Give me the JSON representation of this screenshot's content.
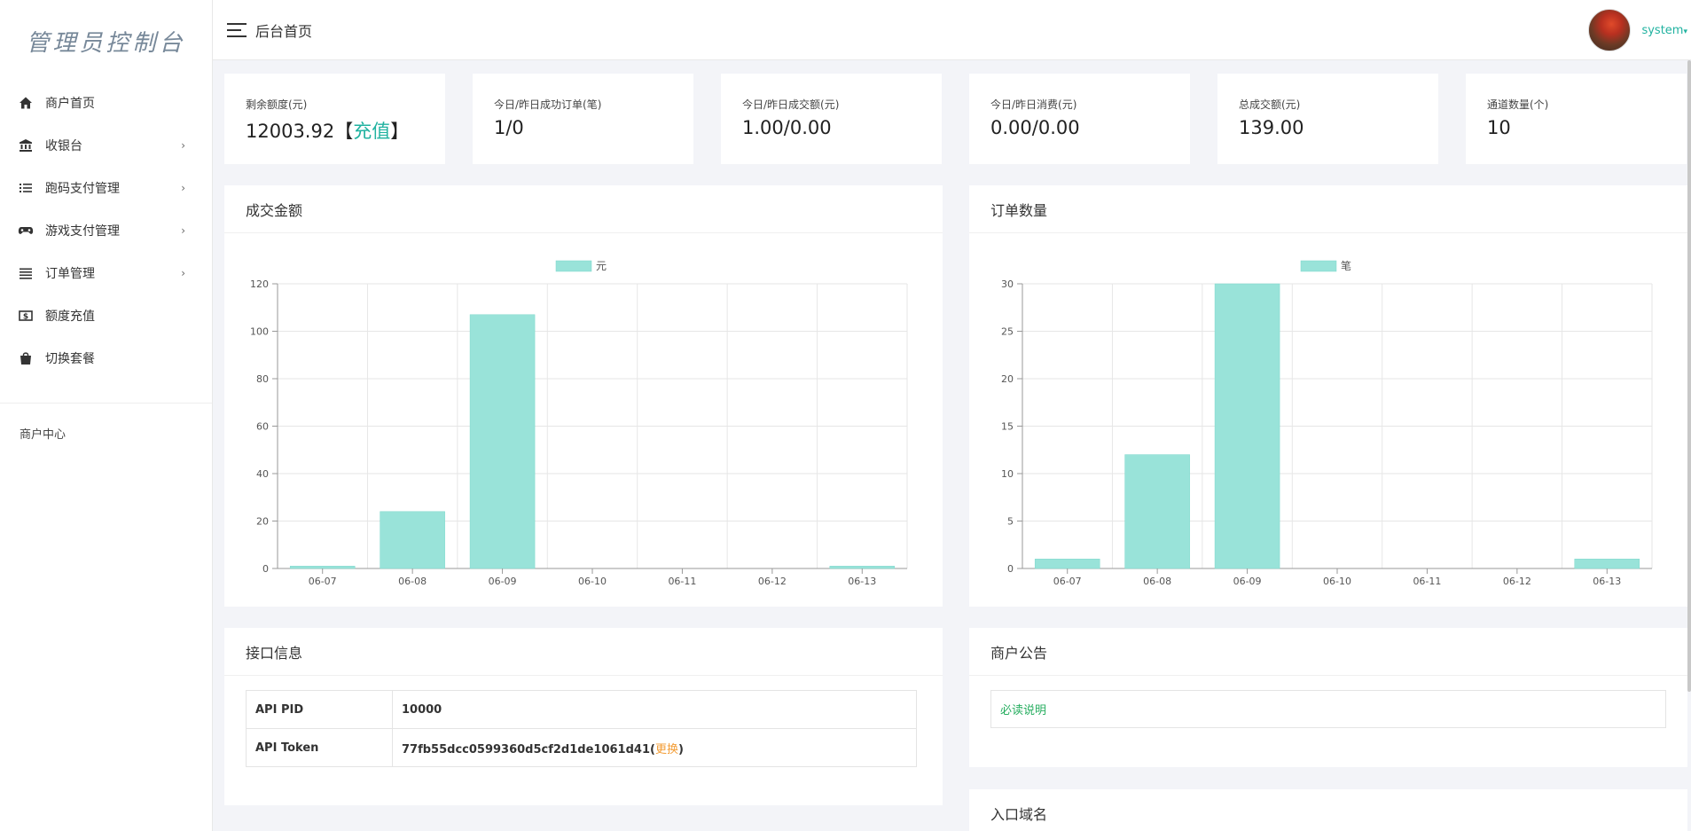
{
  "sidebar": {
    "brand": "管理员控制台",
    "items": [
      {
        "label": "商户首页",
        "icon": "home-icon",
        "has_children": false
      },
      {
        "label": "收银台",
        "icon": "bank-icon",
        "has_children": true
      },
      {
        "label": "跑码支付管理",
        "icon": "list-icon",
        "has_children": true
      },
      {
        "label": "游戏支付管理",
        "icon": "gamepad-icon",
        "has_children": true
      },
      {
        "label": "订单管理",
        "icon": "bars-icon",
        "has_children": true
      },
      {
        "label": "额度充值",
        "icon": "money-icon",
        "has_children": false
      },
      {
        "label": "切换套餐",
        "icon": "bag-icon",
        "has_children": false
      }
    ],
    "section": "商户中心",
    "chevron": "›"
  },
  "header": {
    "title": "后台首页",
    "username": "system",
    "caret": "▾"
  },
  "stats": [
    {
      "label": "剩余额度(元)",
      "value": "12003.92",
      "bracket_open": "【",
      "link": "充值",
      "bracket_close": "】"
    },
    {
      "label": "今日/昨日成功订单(笔)",
      "value": "1/0"
    },
    {
      "label": "今日/昨日成交额(元)",
      "value": "1.00/0.00"
    },
    {
      "label": "今日/昨日消费(元)",
      "value": "0.00/0.00"
    },
    {
      "label": "总成交额(元)",
      "value": "139.00"
    },
    {
      "label": "通道数量(个)",
      "value": "10"
    }
  ],
  "panels": {
    "amount_title": "成交金额",
    "orders_title": "订单数量",
    "api_title": "接口信息",
    "notice_title": "商户公告",
    "domain_title": "入口域名"
  },
  "api": {
    "pid_label": "API PID",
    "pid_value": "10000",
    "token_label": "API Token",
    "token_value": "77fb55dcc0599360d5cf2d1de1061d41",
    "paren_open": "(",
    "change_label": "更换",
    "paren_close": ")"
  },
  "notice": {
    "link": "必读说明"
  },
  "colors": {
    "accent": "#20b2a0",
    "bar": "#99e3d9",
    "bar_stroke": "#7dd8cc",
    "warning": "#f39c34",
    "notice": "#27ae60"
  },
  "chart_data": [
    {
      "type": "bar",
      "categories": [
        "06-07",
        "06-08",
        "06-09",
        "06-10",
        "06-11",
        "06-12",
        "06-13"
      ],
      "series": [
        {
          "name": "元",
          "values": [
            1,
            24,
            107,
            0,
            0,
            0,
            1
          ]
        }
      ],
      "ylim": [
        0,
        120
      ],
      "yticks": [
        0,
        20,
        40,
        60,
        80,
        100,
        120
      ],
      "legend": "top-center",
      "grid": true
    },
    {
      "type": "bar",
      "categories": [
        "06-07",
        "06-08",
        "06-09",
        "06-10",
        "06-11",
        "06-12",
        "06-13"
      ],
      "series": [
        {
          "name": "笔",
          "values": [
            1,
            12,
            30,
            0,
            0,
            0,
            1
          ]
        }
      ],
      "ylim": [
        0,
        30
      ],
      "yticks": [
        0,
        5,
        10,
        15,
        20,
        25,
        30
      ],
      "legend": "top-center",
      "grid": true
    }
  ]
}
